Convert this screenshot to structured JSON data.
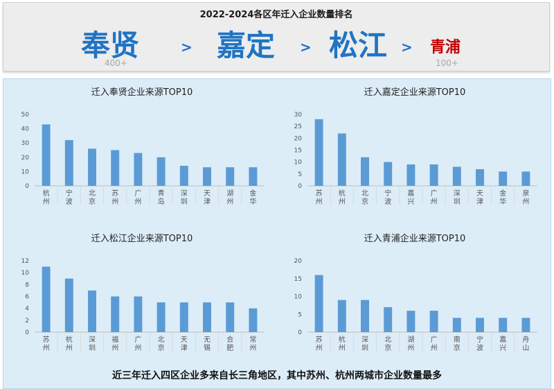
{
  "header": {
    "title": "2022-2024各区年迁入企业数量排名",
    "ranking": [
      {
        "label": "奉贤",
        "note": "400+"
      },
      {
        "label": "嘉定",
        "note": ""
      },
      {
        "label": "松江",
        "note": ""
      },
      {
        "label": "青浦",
        "note": "100+"
      }
    ],
    "arrow": ">"
  },
  "colors": {
    "bar": "#5b9bd5",
    "accent": "#1f74c4",
    "last_rank": "#c00000",
    "panel": "#dcedf8"
  },
  "chart_data": [
    {
      "type": "bar",
      "title": "迁入奉贤企业来源TOP10",
      "categories": [
        "杭州",
        "宁波",
        "北京",
        "苏州",
        "广州",
        "青岛",
        "深圳",
        "天津",
        "湖州",
        "金华"
      ],
      "values": [
        43,
        32,
        26,
        25,
        23,
        20,
        14,
        13,
        13,
        13
      ],
      "yticks": [
        0,
        10,
        20,
        30,
        40,
        50
      ],
      "ylim": [
        0,
        50
      ],
      "xlabel": "",
      "ylabel": "",
      "grid": false
    },
    {
      "type": "bar",
      "title": "迁入嘉定企业来源TOP10",
      "categories": [
        "苏州",
        "杭州",
        "北京",
        "宁波",
        "嘉兴",
        "广州",
        "深圳",
        "天津",
        "金华",
        "泉州"
      ],
      "values": [
        28,
        22,
        12,
        10,
        9,
        9,
        8,
        7,
        6,
        6
      ],
      "yticks": [
        0,
        5,
        10,
        15,
        20,
        25,
        30
      ],
      "ylim": [
        0,
        30
      ],
      "xlabel": "",
      "ylabel": "",
      "grid": false
    },
    {
      "type": "bar",
      "title": "迁入松江企业来源TOP10",
      "categories": [
        "苏州",
        "杭州",
        "深圳",
        "福州",
        "广州",
        "北京",
        "天津",
        "无锡",
        "合肥",
        "常州"
      ],
      "values": [
        11,
        9,
        7,
        6,
        6,
        5,
        5,
        5,
        5,
        4
      ],
      "yticks": [
        0,
        2,
        4,
        6,
        8,
        10,
        12
      ],
      "ylim": [
        0,
        12
      ],
      "xlabel": "",
      "ylabel": "",
      "grid": false
    },
    {
      "type": "bar",
      "title": "迁入青浦企业来源TOP10",
      "categories": [
        "苏州",
        "杭州",
        "深圳",
        "北京",
        "湖州",
        "广州",
        "南京",
        "宁波",
        "嘉兴",
        "舟山"
      ],
      "values": [
        16,
        9,
        9,
        7,
        6,
        6,
        4,
        4,
        4,
        4
      ],
      "yticks": [
        0,
        5,
        10,
        15,
        20
      ],
      "ylim": [
        0,
        20
      ],
      "xlabel": "",
      "ylabel": "",
      "grid": false
    }
  ],
  "conclusion": "近三年迁入四区企业多来自长三角地区，其中苏州、杭州两城市企业数量最多"
}
